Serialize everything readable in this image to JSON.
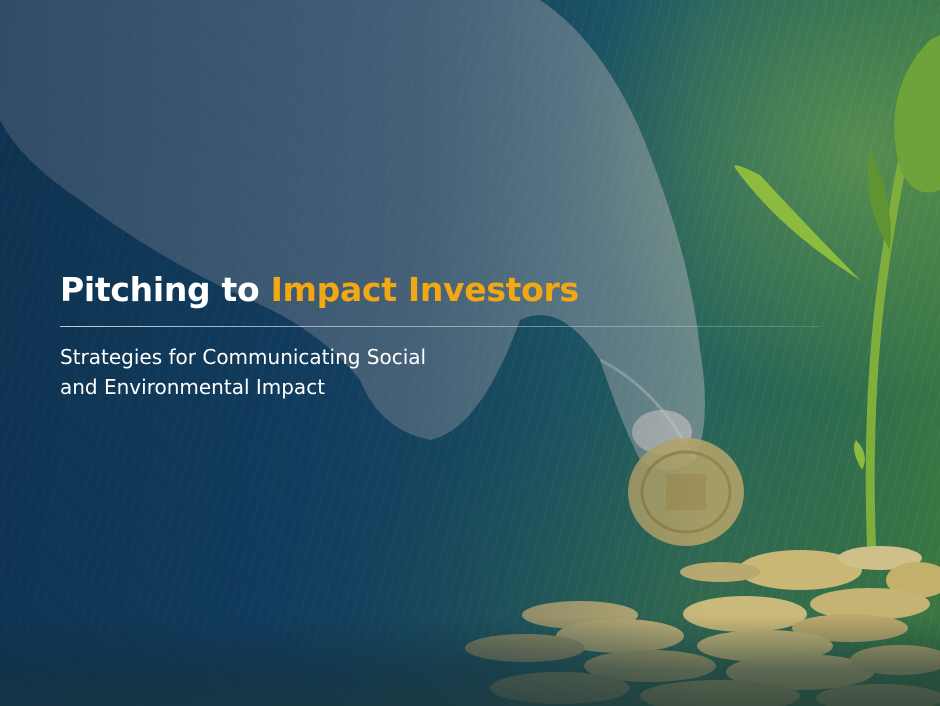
{
  "hero": {
    "title_part1": "Pitching to ",
    "title_accent": "Impact Investors",
    "subtitle_line1": "Strategies for Communicating Social",
    "subtitle_line2": "and Environmental Impact",
    "accent_color": "#f3a712",
    "background_color": "#123a55"
  },
  "image": {
    "depicts": [
      "hand-icon",
      "coin-icon",
      "sprout-icon",
      "coin-pile-icon"
    ]
  }
}
